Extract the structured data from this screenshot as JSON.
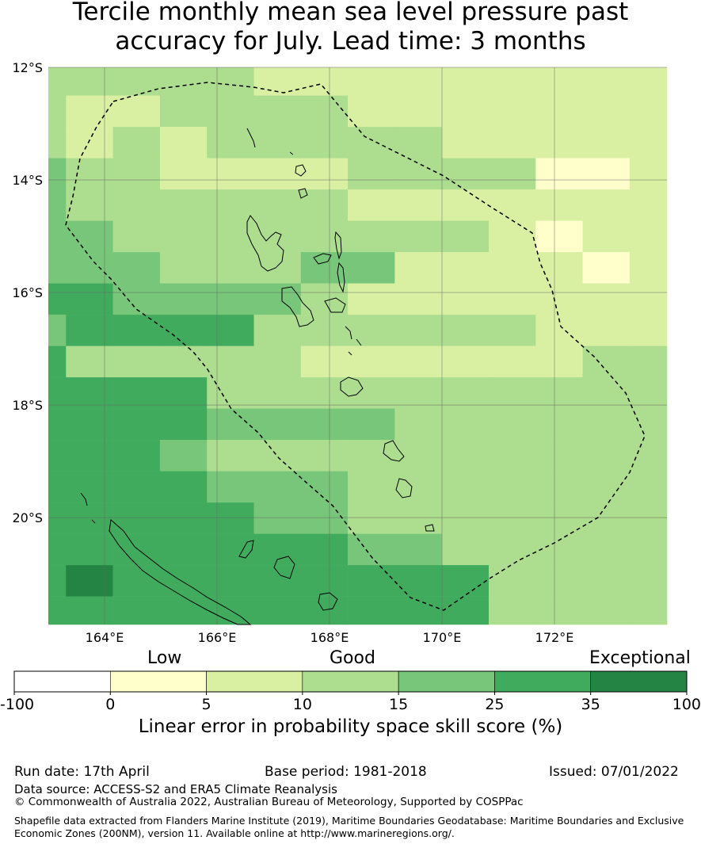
{
  "title_line1": "Tercile monthly mean sea level pressure past",
  "title_line2": "accuracy for July. Lead time: 3 months",
  "map": {
    "lon_range": [
      163.0,
      174.0
    ],
    "lat_range": [
      -21.9,
      -12.0
    ],
    "cell_size_deg": 0.833,
    "lon_ticks": [
      "164°E",
      "166°E",
      "168°E",
      "170°E",
      "172°E"
    ],
    "lon_tick_values": [
      164,
      166,
      168,
      170,
      172
    ],
    "lat_ticks": [
      "12°S",
      "14°S",
      "16°S",
      "18°S",
      "20°S"
    ],
    "lat_tick_values": [
      -12,
      -14,
      -16,
      -18,
      -20
    ],
    "grid": true,
    "skill_grid_rows": [
      "DDDDDCCCCCCCCC",
      "DCCDDDDCCCCCCC",
      "DCDCDDDDDCCCCC",
      "EDDCCCCDDDDBBC",
      "EDDDDDDCCCCCCC",
      "EEDDDDDDDDCBCC",
      "EEEDDDEECCCCBC",
      "FFEEEEDCCCCCCC",
      "EFFFFDDDDDDCCC",
      "FDDDDDCCCCCCDD",
      "FFFFDDDDDDDDDD",
      "FFFFEEEEDDDDDD",
      "FFFEDDDDDDDDDD",
      "FFFFEEEDDDDDDD",
      "FFFFFEEDDDDDDD",
      "FFFFFFFEEDDDDD",
      "FGFFFFFFFFDDDD",
      "FFFFFFFFFFDDDD"
    ]
  },
  "colorbar": {
    "categories": [
      "Low",
      "Good",
      "Exceptional"
    ],
    "bins": [
      {
        "from": "-100",
        "to": "0",
        "color": "#ffffff"
      },
      {
        "from": "0",
        "to": "5",
        "color": "#ffffcc"
      },
      {
        "from": "5",
        "to": "10",
        "color": "#d9f0a3"
      },
      {
        "from": "10",
        "to": "15",
        "color": "#addd8e"
      },
      {
        "from": "15",
        "to": "25",
        "color": "#78c679"
      },
      {
        "from": "25",
        "to": "35",
        "color": "#41ab5d"
      },
      {
        "from": "35",
        "to": "100",
        "color": "#238443"
      }
    ],
    "tick_labels": [
      "-100",
      "0",
      "5",
      "10",
      "15",
      "25",
      "35",
      "100"
    ],
    "label": "Linear error in probability space skill score (%)"
  },
  "footer": {
    "run_date": "Run date: 17th April",
    "base_period": "Base period: 1981-2018",
    "issued": "Issued: 07/01/2022",
    "data_source": "Data source: ACCESS-S2 and ERA5 Climate Reanalysis",
    "copyright": "© Commonwealth of Australia 2022, Australian Bureau of Meteorology, Supported by COSPPac",
    "shapefile_line1": "Shapefile data extracted from Flanders Marine Institute (2019), Maritime Boundaries Geodatabase: Maritime Boundaries and Exclusive",
    "shapefile_line2": "Economic Zones (200NM), version 11. Available online at http://www.marineregions.org/."
  }
}
